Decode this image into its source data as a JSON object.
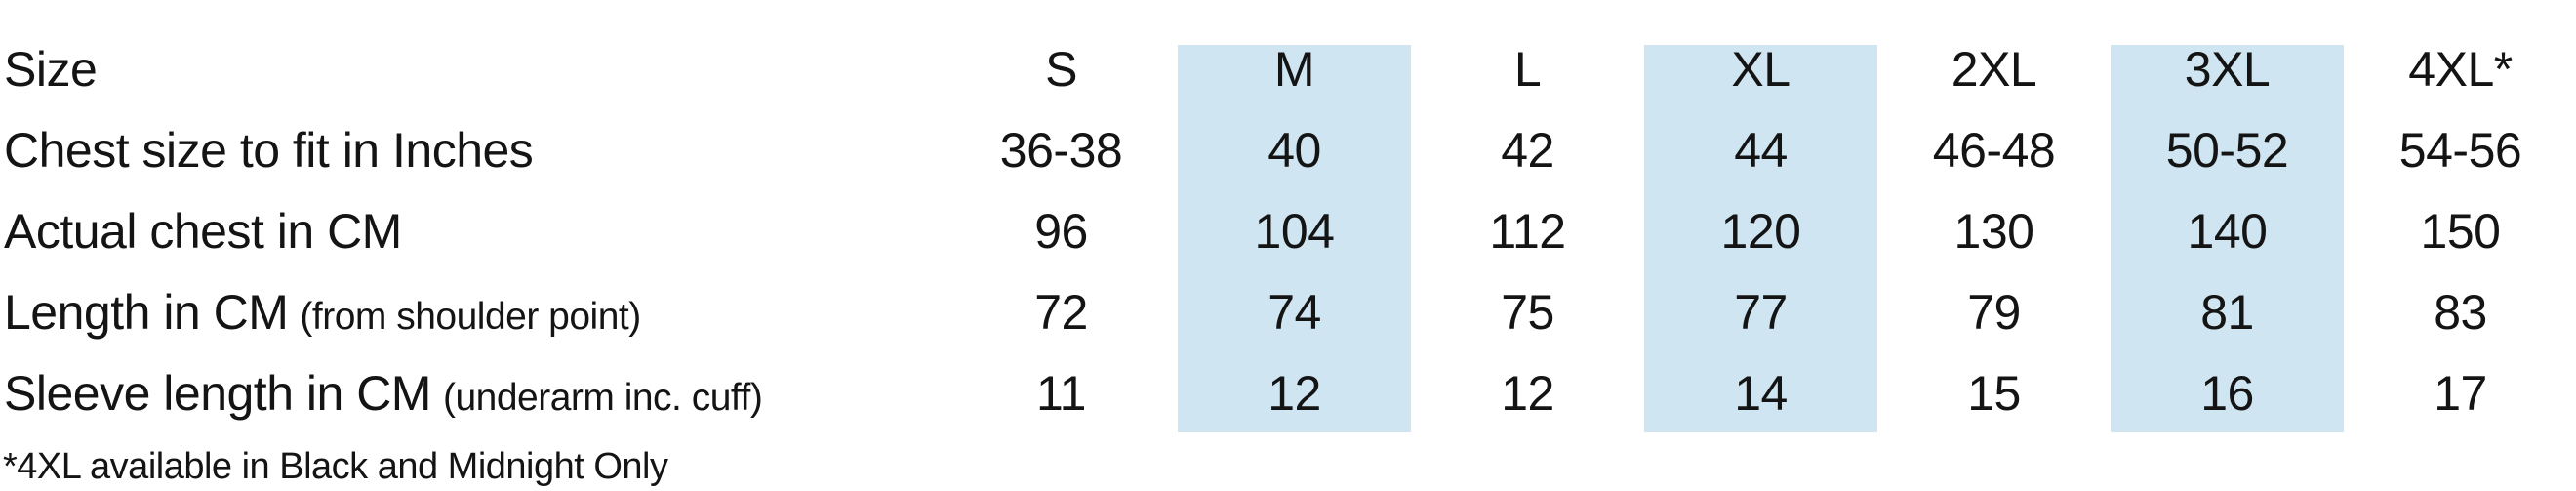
{
  "page": {
    "background_color": "#ffffff",
    "text_color": "#141414",
    "highlight_color": "#cfe5f2"
  },
  "table": {
    "highlighted_columns": [
      "M",
      "XL",
      "3XL"
    ],
    "rows": [
      {
        "label": "Size",
        "values": [
          "S",
          "M",
          "L",
          "XL",
          "2XL",
          "3XL",
          "4XL*"
        ]
      },
      {
        "label": "Chest size to fit in Inches",
        "values": [
          "36-38",
          "40",
          "42",
          "44",
          "46-48",
          "50-52",
          "54-56"
        ]
      },
      {
        "label": "Actual chest in CM",
        "values": [
          "96",
          "104",
          "112",
          "120",
          "130",
          "140",
          "150"
        ]
      },
      {
        "label": "Length in CM",
        "note": "(from shoulder point)",
        "values": [
          "72",
          "74",
          "75",
          "77",
          "79",
          "81",
          "83"
        ]
      },
      {
        "label": "Sleeve length in CM",
        "note": "(underarm inc. cuff)",
        "values": [
          "11",
          "12",
          "12",
          "14",
          "15",
          "16",
          "17"
        ]
      }
    ],
    "footnote": "*4XL available in Black and Midnight Only"
  },
  "chart_data": {
    "type": "table",
    "categories": [
      "S",
      "M",
      "L",
      "XL",
      "2XL",
      "3XL",
      "4XL*"
    ],
    "series": [
      {
        "name": "Chest size to fit in Inches",
        "values": [
          "36-38",
          "40",
          "42",
          "44",
          "46-48",
          "50-52",
          "54-56"
        ]
      },
      {
        "name": "Actual chest in CM",
        "values": [
          96,
          104,
          112,
          120,
          130,
          140,
          150
        ]
      },
      {
        "name": "Length in CM (from shoulder point)",
        "values": [
          72,
          74,
          75,
          77,
          79,
          81,
          83
        ]
      },
      {
        "name": "Sleeve length in CM (underarm inc. cuff)",
        "values": [
          11,
          12,
          12,
          14,
          15,
          16,
          17
        ]
      }
    ],
    "highlighted_columns": [
      "M",
      "XL",
      "3XL"
    ],
    "annotations": [
      "*4XL available in Black and Midnight Only"
    ],
    "layout": {
      "grid": false,
      "header_row": "top",
      "header_column": "left"
    }
  }
}
